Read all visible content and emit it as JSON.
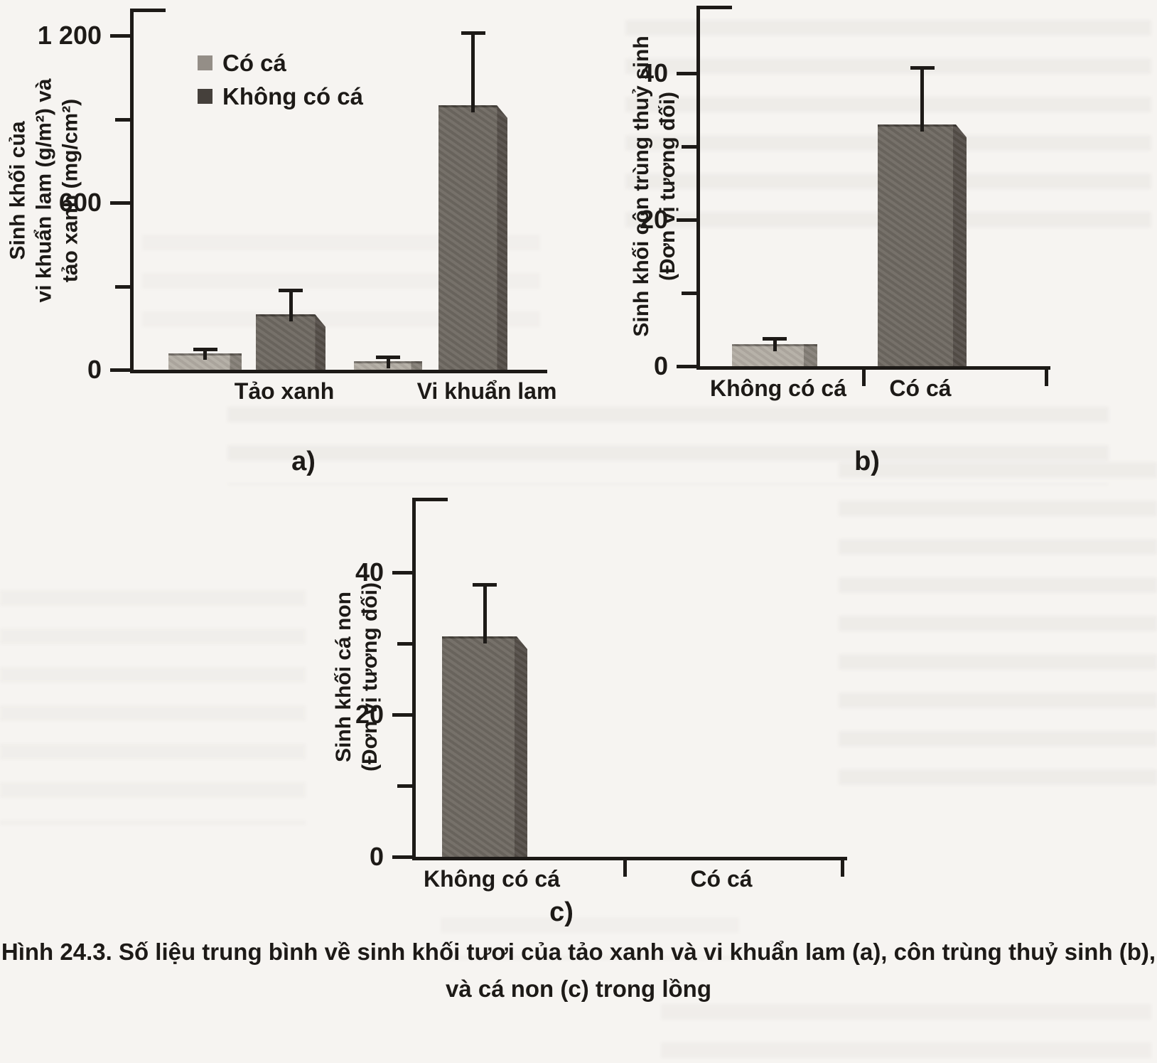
{
  "page": {
    "background": "#f6f4f1",
    "ink": "#1d1a17"
  },
  "colors": {
    "bar_light": "#b3ada4",
    "bar_dark": "#6e6861",
    "bar_light_edge": "#857f77",
    "bar_dark_edge": "#544e48",
    "legend_swatch_light": "#948e87",
    "legend_swatch_dark": "#45403b",
    "axis": "#1d1a17"
  },
  "legend": {
    "items": [
      {
        "label": "Có cá",
        "shade": "light"
      },
      {
        "label": "Không có cá",
        "shade": "dark"
      }
    ]
  },
  "figure_caption": {
    "line1": "Hình 24.3. Số liệu trung bình về sinh khối tươi của tảo xanh và vi khuẩn lam (a), côn trùng thuỷ sinh (b),",
    "line2": "và cá non (c) trong lồng"
  },
  "chart_data": [
    {
      "id": "a",
      "type": "bar",
      "panel_label": "a)",
      "ylabel_lines": [
        "Sinh khối của",
        "vi khuẩn lam (g/m²) và",
        "tảo xanh (mg/cm²)"
      ],
      "categories": [
        "Tảo xanh",
        "Vi khuẩn lam"
      ],
      "series": [
        {
          "name": "Có cá",
          "shade": "light",
          "values": [
            60,
            30
          ],
          "error_top": [
            78,
            50
          ]
        },
        {
          "name": "Không có cá",
          "shade": "dark",
          "values": [
            200,
            950
          ],
          "error_top": [
            290,
            1215
          ]
        }
      ],
      "bars": [
        {
          "category": "Tảo xanh",
          "series": "Có cá",
          "shade": "light",
          "value": 60,
          "error_top": 78
        },
        {
          "category": "Tảo xanh",
          "series": "Không có cá",
          "shade": "dark",
          "value": 200,
          "error_top": 290
        },
        {
          "category": "Vi khuẩn lam",
          "series": "Có cá",
          "shade": "light",
          "value": 30,
          "error_top": 50
        },
        {
          "category": "Vi khuẩn lam",
          "series": "Không có cá",
          "shade": "dark",
          "value": 950,
          "error_top": 1215
        }
      ],
      "y_major_ticks": [
        {
          "value": 0,
          "label": "0"
        },
        {
          "value": 600,
          "label": "600"
        },
        {
          "value": 1200,
          "label": "1 200"
        }
      ],
      "y_minor_ticks": [
        300,
        900
      ],
      "ylim": [
        0,
        1290
      ],
      "grid": false,
      "legend_position": "inside-top-left"
    },
    {
      "id": "b",
      "type": "bar",
      "panel_label": "b)",
      "ylabel_lines": [
        "Sinh khối côn trùng thuỷ sinh",
        "(Đơn vị tương đối)"
      ],
      "categories": [
        "Không có cá",
        "Có cá"
      ],
      "bars": [
        {
          "category": "Không có cá",
          "shade": "light",
          "value": 3,
          "error_top": 4
        },
        {
          "category": "Có cá",
          "shade": "dark",
          "value": 33,
          "error_top": 41
        }
      ],
      "y_major_ticks": [
        {
          "value": 0,
          "label": "0"
        },
        {
          "value": 20,
          "label": "20"
        },
        {
          "value": 40,
          "label": "40"
        }
      ],
      "y_minor_ticks": [
        10,
        30
      ],
      "ylim": [
        0,
        49
      ],
      "grid": false
    },
    {
      "id": "c",
      "type": "bar",
      "panel_label": "c)",
      "ylabel_lines": [
        "Sinh khối cá non",
        "(Đơn vị tương đối)"
      ],
      "categories": [
        "Không có cá",
        "Có cá"
      ],
      "bars": [
        {
          "category": "Không có cá",
          "shade": "dark",
          "value": 31,
          "error_top": 38.5
        },
        {
          "category": "Có cá",
          "shade": "none",
          "value": 0,
          "error_top": null
        }
      ],
      "y_major_ticks": [
        {
          "value": 0,
          "label": "0"
        },
        {
          "value": 20,
          "label": "20"
        },
        {
          "value": 40,
          "label": "40"
        }
      ],
      "y_minor_ticks": [
        10,
        30
      ],
      "ylim": [
        0,
        50
      ],
      "grid": false
    }
  ]
}
